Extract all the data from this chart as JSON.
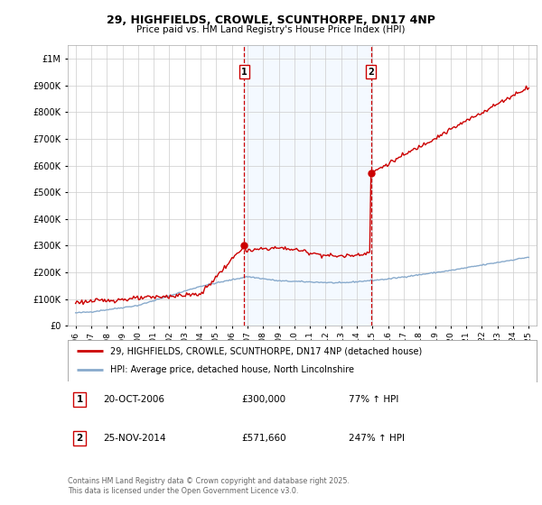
{
  "title": "29, HIGHFIELDS, CROWLE, SCUNTHORPE, DN17 4NP",
  "subtitle": "Price paid vs. HM Land Registry's House Price Index (HPI)",
  "legend_line1": "29, HIGHFIELDS, CROWLE, SCUNTHORPE, DN17 4NP (detached house)",
  "legend_line2": "HPI: Average price, detached house, North Lincolnshire",
  "annotation1_label": "1",
  "annotation1_date": "20-OCT-2006",
  "annotation1_price": "£300,000",
  "annotation1_hpi": "77% ↑ HPI",
  "annotation2_label": "2",
  "annotation2_date": "25-NOV-2014",
  "annotation2_price": "£571,660",
  "annotation2_hpi": "247% ↑ HPI",
  "footer": "Contains HM Land Registry data © Crown copyright and database right 2025.\nThis data is licensed under the Open Government Licence v3.0.",
  "sale1_year": 2006.8,
  "sale1_value": 300000,
  "sale2_year": 2014.9,
  "sale2_value": 571660,
  "property_color": "#cc0000",
  "hpi_color": "#88aacc",
  "highlight_color": "#ddeeff",
  "vline_color": "#cc0000",
  "background_color": "#ffffff",
  "grid_color": "#cccccc",
  "ylim_max": 1050000,
  "xmin": 1995.5,
  "xmax": 2025.5
}
